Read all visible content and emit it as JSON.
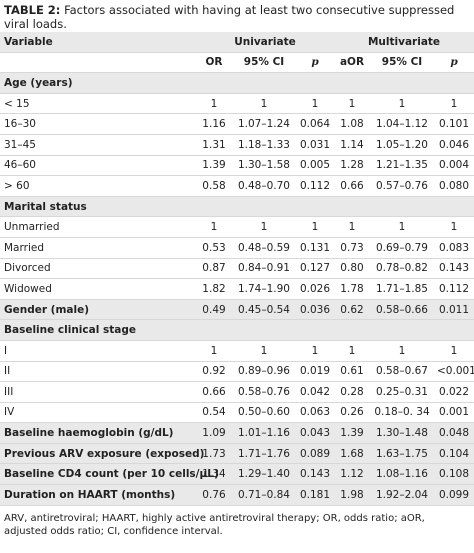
{
  "caption": {
    "label": "TABLE 2:",
    "text": "Factors associated with having at least two consecutive suppressed viral loads."
  },
  "table": {
    "header": [
      "Variable",
      "Univariate",
      "Multivariate"
    ],
    "subheader": [
      "OR",
      "95% CI",
      "p",
      "aOR",
      "95% CI",
      "p"
    ],
    "sections": [
      {
        "title": "Age (years)",
        "rows": [
          {
            "label": "< 15",
            "values": [
              "1",
              "1",
              "1",
              "1",
              "1",
              "1"
            ]
          },
          {
            "label": "16–30",
            "values": [
              "1.16",
              "1.07–1.24",
              "0.064",
              "1.08",
              "1.04–1.12",
              "0.101"
            ]
          },
          {
            "label": "31–45",
            "values": [
              "1.31",
              "1.18–1.33",
              "0.031",
              "1.14",
              "1.05–1.20",
              "0.046"
            ]
          },
          {
            "label": "46–60",
            "values": [
              "1.39",
              "1.30–1.58",
              "0.005",
              "1.28",
              "1.21–1.35",
              "0.004"
            ]
          },
          {
            "label": "> 60",
            "values": [
              "0.58",
              "0.48–0.70",
              "0.112",
              "0.66",
              "0.57–0.76",
              "0.080"
            ]
          }
        ]
      },
      {
        "title": "Marital status",
        "rows": [
          {
            "label": "Unmarried",
            "values": [
              "1",
              "1",
              "1",
              "1",
              "1",
              "1"
            ]
          },
          {
            "label": "Married",
            "values": [
              "0.53",
              "0.48–0.59",
              "0.131",
              "0.73",
              "0.69–0.79",
              "0.083"
            ]
          },
          {
            "label": "Divorced",
            "values": [
              "0.87",
              "0.84–0.91",
              "0.127",
              "0.80",
              "0.78–0.82",
              "0.143"
            ]
          },
          {
            "label": "Widowed",
            "values": [
              "1.82",
              "1.74–1.90",
              "0.026",
              "1.78",
              "1.71–1.85",
              "0.112"
            ]
          }
        ]
      },
      {
        "title": "Gender (male)",
        "values": [
          "0.49",
          "0.45–0.54",
          "0.036",
          "0.62",
          "0.58–0.66",
          "0.011"
        ]
      },
      {
        "title": "Baseline clinical stage",
        "rows": [
          {
            "label": "I",
            "values": [
              "1",
              "1",
              "1",
              "1",
              "1",
              "1"
            ]
          },
          {
            "label": "II",
            "values": [
              "0.92",
              "0.89–0.96",
              "0.019",
              "0.61",
              "0.58–0.67",
              "<0.001"
            ]
          },
          {
            "label": "III",
            "values": [
              "0.66",
              "0.58–0.76",
              "0.042",
              "0.28",
              "0.25–0.31",
              "0.022"
            ]
          },
          {
            "label": "IV",
            "values": [
              "0.54",
              "0.50–0.60",
              "0.063",
              "0.26",
              "0.18–0. 34",
              "0.001"
            ]
          }
        ]
      },
      {
        "title": "Baseline haemoglobin (g/dL)",
        "values": [
          "1.09",
          "1.01–1.16",
          "0.043",
          "1.39",
          "1.30–1.48",
          "0.048"
        ]
      },
      {
        "title": "Previous ARV exposure (exposed)",
        "values": [
          "1.73",
          "1.71–1.76",
          "0.089",
          "1.68",
          "1.63–1.75",
          "0.104"
        ]
      },
      {
        "title": "Baseline CD4 count (per 10 cells/µL)",
        "values": [
          "1.34",
          "1.29–1.40",
          "0.143",
          "1.12",
          "1.08–1.16",
          "0.108"
        ]
      },
      {
        "title": "Duration on HAART (months)",
        "values": [
          "0.76",
          "0.71–0.84",
          "0.181",
          "1.98",
          "1.92–2.04",
          "0.099"
        ]
      }
    ]
  },
  "footnote": "ARV, antiretroviral; HAART, highly active antiretroviral therapy; OR, odds ratio; aOR, adjusted odds ratio; CI, confidence interval."
}
